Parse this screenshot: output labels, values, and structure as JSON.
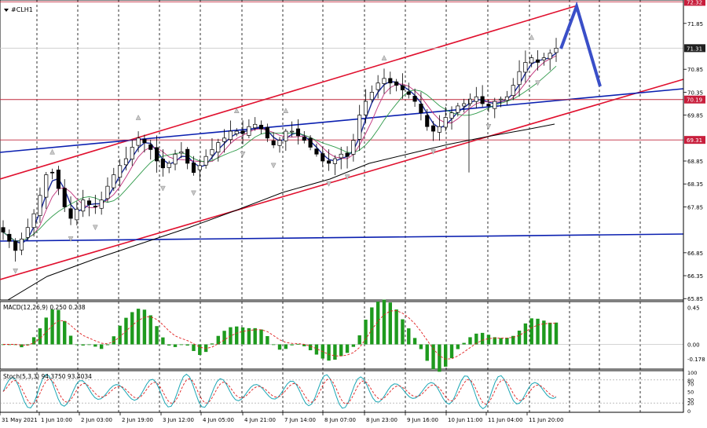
{
  "window": {
    "symbol_label": "#CLH1",
    "menu_icon": "triangle-down-icon"
  },
  "colors": {
    "background": "#ffffff",
    "bull_candle": "#ffffff",
    "bear_candle": "#000000",
    "channel": "#e0102e",
    "trendline": "#0a1fb0",
    "level_line": "#c0283c",
    "arrow": "#3a4fc8",
    "price_tag": "#c81e3c",
    "current_tag": "#202020",
    "ma_fast": "#1a2a9a",
    "ma_mid": "#c0307a",
    "ma_slow": "#2f9a4a",
    "ma_long": "#000000",
    "macd_hist": "#1e9a1e",
    "macd_signal": "#e02020",
    "stoch_main": "#1aa6b4",
    "stoch_signal": "#e02020"
  },
  "chart_data": [
    {
      "type": "candlestick",
      "title": "#CLH1",
      "x_labels": [
        "31 May 2021",
        "1 Jun 10:00",
        "2 Jun 03:00",
        "2 Jun 19:00",
        "3 Jun 12:00",
        "4 Jun 05:00",
        "4 Jun 21:00",
        "7 Jun 14:00",
        "8 Jun 07:00",
        "8 Jun 23:00",
        "9 Jun 16:00",
        "10 Jun 11:00",
        "11 Jun 04:00",
        "11 Jun 20:00"
      ],
      "y_ticks": [
        "71.85",
        "70.85",
        "70.35",
        "69.85",
        "68.85",
        "68.35",
        "67.85",
        "66.85",
        "66.35",
        "65.85"
      ],
      "ylim": [
        65.82,
        72.36
      ],
      "price_tags": [
        {
          "label": "72.32",
          "value": 72.32,
          "kind": "level"
        },
        {
          "label": "71.31",
          "value": 71.31,
          "kind": "current"
        },
        {
          "label": "70.19",
          "value": 70.19,
          "kind": "level"
        },
        {
          "label": "69.31",
          "value": 69.31,
          "kind": "level"
        }
      ],
      "horizontal_levels": [
        72.32,
        70.19,
        69.31
      ],
      "candle_closes": [
        67.3,
        67.1,
        66.9,
        67.15,
        67.4,
        67.7,
        68.1,
        68.55,
        68.6,
        68.25,
        67.85,
        67.6,
        67.8,
        68.0,
        67.9,
        67.85,
        68.0,
        68.3,
        68.55,
        68.75,
        68.9,
        69.15,
        69.35,
        69.25,
        69.1,
        68.85,
        68.7,
        68.8,
        69.0,
        69.05,
        68.8,
        68.6,
        68.75,
        68.95,
        69.1,
        69.25,
        69.35,
        69.5,
        69.5,
        69.45,
        69.6,
        69.65,
        69.55,
        69.35,
        69.2,
        69.3,
        69.5,
        69.5,
        69.4,
        69.3,
        69.15,
        69.0,
        68.85,
        68.8,
        68.9,
        69.0,
        68.95,
        69.3,
        69.85,
        70.15,
        70.35,
        70.55,
        70.65,
        70.55,
        70.5,
        70.4,
        70.3,
        70.15,
        69.9,
        69.6,
        69.5,
        69.6,
        69.8,
        69.9,
        70.05,
        70.1,
        70.2,
        70.25,
        70.1,
        70.05,
        70.15,
        70.2,
        70.25,
        70.5,
        70.8,
        71.0,
        71.1,
        71.0,
        71.1,
        71.2,
        71.31
      ],
      "macd": {
        "label": "MACD(12,26,9) 0.250 0.238",
        "y_ticks": [
          "0.45",
          "0.00",
          "-0.178"
        ],
        "ylim": [
          -0.3,
          0.52
        ]
      },
      "stochastic": {
        "label": "Stoch(5,3,3) 94.3750 93.4034",
        "y_ticks": [
          "100",
          "80",
          "70",
          "50",
          "30",
          "20",
          "0"
        ],
        "ylim": [
          0,
          100
        ]
      }
    }
  ]
}
